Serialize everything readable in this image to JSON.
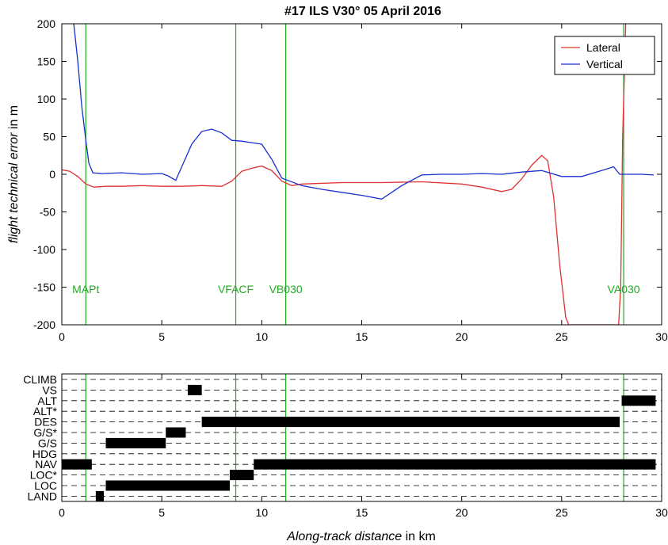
{
  "title": "#17 ILS V30°  05 April 2016",
  "colors": {
    "lateral": "#e03030",
    "vertical": "#1a2fd0",
    "markers": "#22aa22",
    "modes": "#000000"
  },
  "chart_data": [
    {
      "type": "line",
      "title": "#17 ILS V30°  05 April 2016",
      "ylabel_italic": "flight technical error",
      "ylabel_unit": " in m",
      "xlim": [
        0,
        30
      ],
      "ylim": [
        -200,
        200
      ],
      "xticks": [
        0,
        5,
        10,
        15,
        20,
        25,
        30
      ],
      "yticks": [
        -200,
        -150,
        -100,
        -50,
        0,
        50,
        100,
        150,
        200
      ],
      "legend": {
        "position": "top-right",
        "entries": [
          "Lateral",
          "Vertical"
        ]
      },
      "series": [
        {
          "name": "Lateral",
          "x": [
            0,
            0.4,
            0.8,
            1.2,
            1.6,
            2.2,
            3,
            4,
            5,
            6,
            7,
            8,
            8.5,
            9,
            9.5,
            10,
            10.5,
            11,
            11.5,
            12,
            14,
            16,
            18,
            20,
            21,
            22,
            22.5,
            23,
            23.5,
            24,
            24.3,
            24.6,
            24.9,
            25.2,
            25.35,
            27.85,
            27.95,
            28.05,
            28.2
          ],
          "y": [
            6,
            4,
            -3,
            -13,
            -17,
            -16,
            -16,
            -15,
            -16,
            -16,
            -15,
            -16,
            -9,
            4,
            8,
            11,
            5,
            -9,
            -15,
            -13,
            -11,
            -11,
            -10,
            -13,
            -17,
            -23,
            -20,
            -6,
            12,
            25,
            18,
            -30,
            -120,
            -190,
            -200,
            -200,
            -150,
            50,
            200
          ]
        },
        {
          "name": "Vertical",
          "x": [
            0.6,
            0.8,
            1.0,
            1.2,
            1.35,
            1.55,
            2,
            3,
            4,
            5,
            5.3,
            5.7,
            6,
            6.5,
            7,
            7.5,
            8,
            8.5,
            9,
            9.5,
            10,
            10.5,
            11,
            12,
            13,
            14,
            15,
            16,
            17,
            18,
            19,
            20,
            21,
            22,
            23,
            24,
            25,
            26,
            27,
            27.6,
            27.9,
            28.1,
            29,
            29.6
          ],
          "y": [
            200,
            150,
            90,
            45,
            15,
            2,
            1,
            2,
            0,
            1,
            -2,
            -8,
            10,
            40,
            57,
            60,
            55,
            45,
            44,
            42,
            40,
            20,
            -5,
            -15,
            -20,
            -24,
            -28,
            -33,
            -15,
            -1,
            0,
            0,
            1,
            0,
            3,
            5,
            -3,
            -3,
            5,
            10,
            0,
            0,
            0,
            -1
          ]
        }
      ],
      "annotations": [
        {
          "label": "MAPt",
          "x": 1.2
        },
        {
          "label": "VFACF",
          "x": 8.7
        },
        {
          "label": "VB030",
          "x": 11.2
        },
        {
          "label": "VA030",
          "x": 28.1
        }
      ]
    },
    {
      "type": "timeline",
      "xlabel_italic": "Along-track distance",
      "xlabel_unit": " in km",
      "xlim": [
        0,
        30
      ],
      "xticks": [
        0,
        5,
        10,
        15,
        20,
        25,
        30
      ],
      "categories": [
        "CLIMB",
        "VS",
        "ALT",
        "ALT*",
        "DES",
        "G/S*",
        "G/S",
        "HDG",
        "NAV",
        "LOC*",
        "LOC",
        "LAND"
      ],
      "vertical_markers_x": [
        1.2,
        8.7,
        11.2,
        28.1
      ],
      "segments": [
        {
          "mode": "VS",
          "start": 6.3,
          "end": 7.0
        },
        {
          "mode": "ALT",
          "start": 28.0,
          "end": 29.7
        },
        {
          "mode": "DES",
          "start": 7.0,
          "end": 27.9
        },
        {
          "mode": "G/S*",
          "start": 5.2,
          "end": 6.2
        },
        {
          "mode": "G/S",
          "start": 2.2,
          "end": 5.2
        },
        {
          "mode": "NAV",
          "start": 0.0,
          "end": 1.5
        },
        {
          "mode": "NAV",
          "start": 9.6,
          "end": 29.7
        },
        {
          "mode": "LOC*",
          "start": 8.4,
          "end": 9.6
        },
        {
          "mode": "LOC",
          "start": 2.2,
          "end": 8.4
        },
        {
          "mode": "LAND",
          "start": 1.7,
          "end": 2.1
        }
      ]
    }
  ]
}
